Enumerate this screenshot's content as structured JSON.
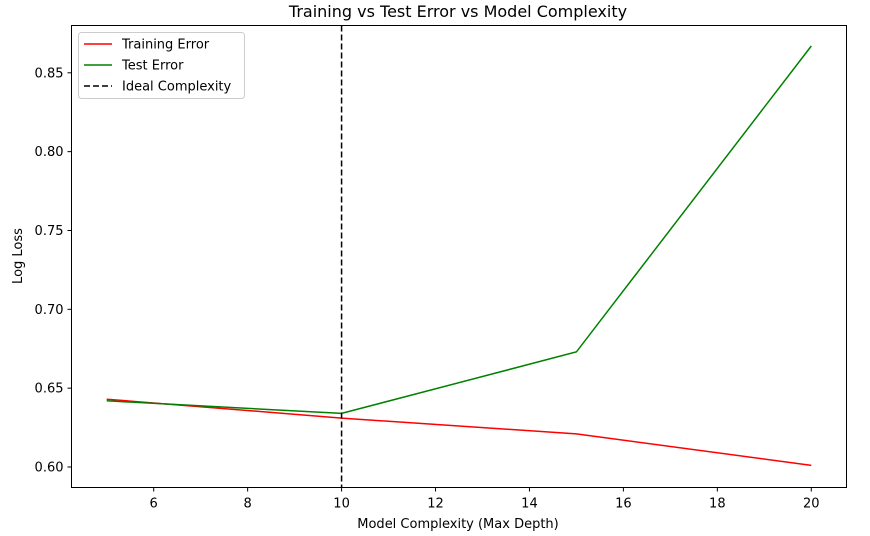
{
  "chart_data": {
    "type": "line",
    "title": "Training vs Test Error vs Model Complexity",
    "xlabel": "Model Complexity (Max Depth)",
    "ylabel": "Log Loss",
    "xlim": [
      4.25,
      20.75
    ],
    "ylim": [
      0.587,
      0.88
    ],
    "xticks": [
      6,
      8,
      10,
      12,
      14,
      16,
      18,
      20
    ],
    "yticks": [
      0.6,
      0.65,
      0.7,
      0.75,
      0.8,
      0.85
    ],
    "xtick_labels": [
      "6",
      "8",
      "10",
      "12",
      "14",
      "16",
      "18",
      "20"
    ],
    "ytick_labels": [
      "0.60",
      "0.65",
      "0.70",
      "0.75",
      "0.80",
      "0.85"
    ],
    "grid": false,
    "legend_position": "top-left",
    "x": [
      5,
      10,
      15,
      20
    ],
    "series": [
      {
        "name": "Training Error",
        "color": "#ff0000",
        "style": "solid",
        "values": [
          0.643,
          0.631,
          0.621,
          0.601
        ]
      },
      {
        "name": "Test Error",
        "color": "#008000",
        "style": "solid",
        "values": [
          0.642,
          0.634,
          0.673,
          0.867
        ]
      }
    ],
    "vlines": [
      {
        "name": "Ideal Complexity",
        "x": 10,
        "color": "#000000",
        "style": "dashed"
      }
    ]
  }
}
